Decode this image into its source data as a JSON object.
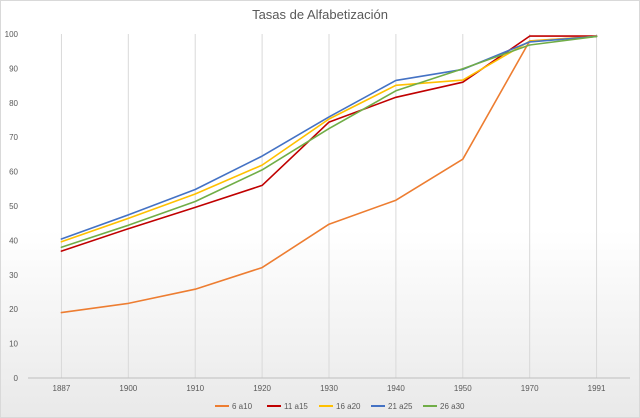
{
  "chart_data": {
    "type": "line",
    "title": "Tasas de Alfabetización",
    "xlabel": "",
    "ylabel": "",
    "categories": [
      "1887",
      "1900",
      "1910",
      "1920",
      "1930",
      "1940",
      "1950",
      "1970",
      "1991"
    ],
    "ylim": [
      0,
      100
    ],
    "yticks": [
      0,
      10,
      20,
      30,
      40,
      50,
      60,
      70,
      80,
      90,
      100
    ],
    "grid": "vertical",
    "legend_position": "bottom",
    "series": [
      {
        "name": "6 a10",
        "color": "#ed7d31",
        "values": [
          19.0,
          21.7,
          25.8,
          32.1,
          44.7,
          51.7,
          63.6,
          98.0,
          99.3
        ]
      },
      {
        "name": "11 a15",
        "color": "#c00000",
        "values": [
          36.9,
          43.4,
          49.6,
          56.0,
          74.4,
          81.6,
          86.0,
          99.4,
          99.4
        ]
      },
      {
        "name": "16 a20",
        "color": "#ffc000",
        "values": [
          39.6,
          46.4,
          53.5,
          61.9,
          75.3,
          85.1,
          86.6,
          97.9,
          99.3
        ]
      },
      {
        "name": "21 a25",
        "color": "#4472c4",
        "values": [
          40.4,
          47.4,
          54.8,
          64.5,
          75.9,
          86.5,
          89.7,
          97.7,
          99.3
        ]
      },
      {
        "name": "26 a30",
        "color": "#70ad47",
        "values": [
          38.0,
          44.4,
          51.3,
          60.5,
          72.5,
          83.5,
          89.9,
          96.8,
          99.3
        ]
      }
    ]
  }
}
